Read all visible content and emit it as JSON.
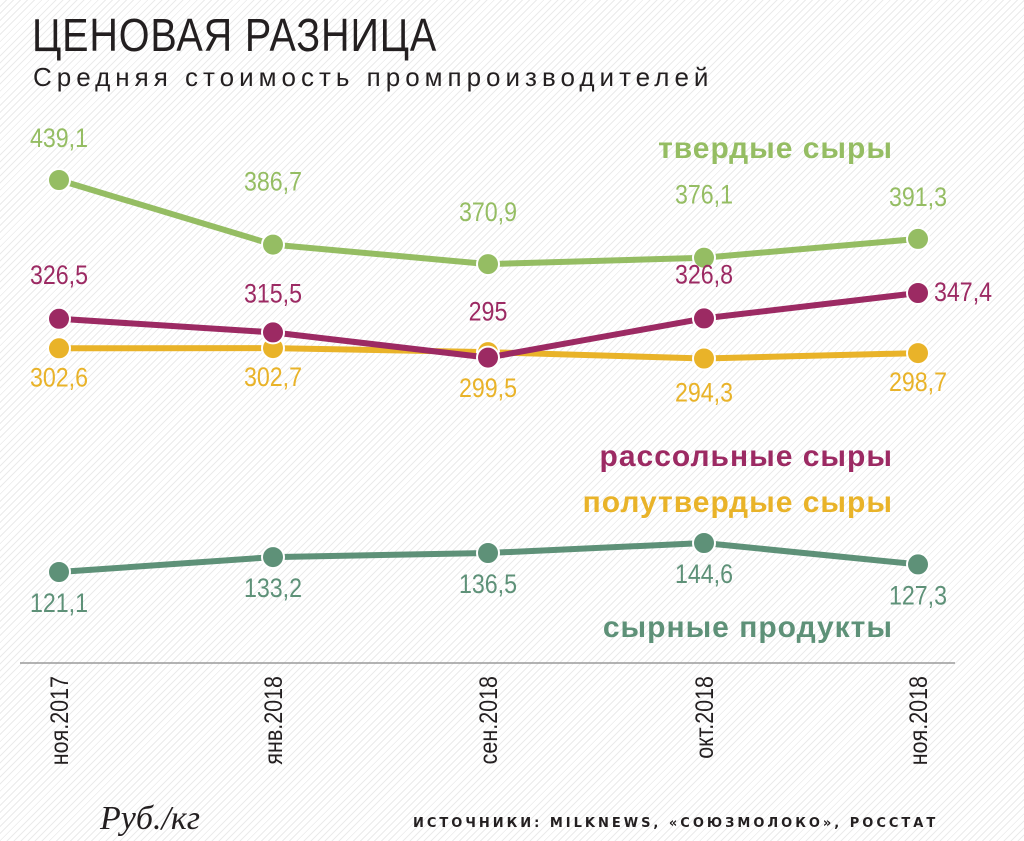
{
  "header": {
    "title": "ЦЕНОВАЯ РАЗНИЦА",
    "subtitle": "Средняя стоимость промпроизводителей"
  },
  "footer": {
    "unit": "Руб./кг",
    "source": "ИСТОЧНИКИ: MILKNEWS, «СОЮЗМОЛОКО», РОССТАТ"
  },
  "chart_data": {
    "type": "line",
    "title": "ЦЕНОВАЯ РАЗНИЦА",
    "subtitle": "Средняя стоимость промпроизводителей",
    "ylabel": "Руб./кг",
    "categories": [
      "ноя.2017",
      "янв.2018",
      "сен.2018",
      "окт.2018",
      "ноя.2018"
    ],
    "ylim": [
      100,
      450
    ],
    "grid": false,
    "legend": "inline labels on the right",
    "series": [
      {
        "name": "твердые сыры",
        "color": "#95bd63",
        "values": [
          439.1,
          386.7,
          370.9,
          376.1,
          391.3
        ],
        "labels": [
          "439,1",
          "386,7",
          "370,9",
          "376,1",
          "391,3"
        ]
      },
      {
        "name": "рассольные сыры",
        "color": "#9c2a63",
        "values": [
          326.5,
          315.5,
          295,
          326.8,
          347.4
        ],
        "labels": [
          "326,5",
          "315,5",
          "295",
          "326,8",
          "347,4"
        ]
      },
      {
        "name": "полутвердые сыры",
        "color": "#e9b329",
        "values": [
          302.6,
          302.7,
          299.5,
          294.3,
          298.7
        ],
        "labels": [
          "302,6",
          "302,7",
          "299,5",
          "294,3",
          "298,7"
        ]
      },
      {
        "name": "сырные продукты",
        "color": "#5e9178",
        "values": [
          121.1,
          133.2,
          136.5,
          144.6,
          127.3
        ],
        "labels": [
          "121,1",
          "133,2",
          "136,5",
          "144,6",
          "127,3"
        ]
      }
    ]
  }
}
